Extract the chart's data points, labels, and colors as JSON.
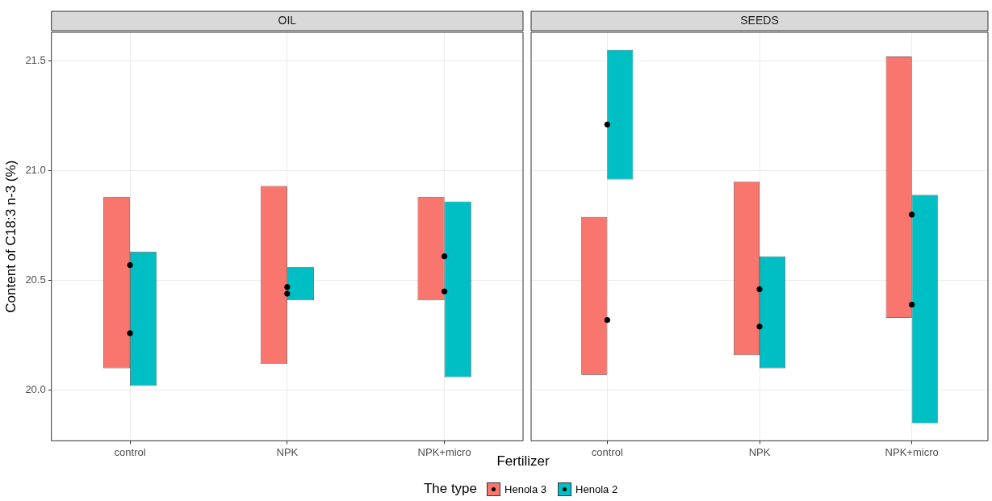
{
  "chart_data": [
    {
      "type": "bar",
      "title": "OIL",
      "xlabel": "Fertilizer",
      "ylabel": "Content of C18:3 n-3 (%)",
      "legend_title": "The type",
      "legend": "bottom",
      "grid": true,
      "marker": "circle",
      "categories": [
        "control",
        "NPK",
        "NPK+micro"
      ],
      "ylim": [
        19.77,
        21.63
      ],
      "yticks": [
        {
          "value": 20,
          "label": "20.0"
        },
        {
          "value": 20.5,
          "label": "20.5"
        },
        {
          "value": 21,
          "label": "21.0"
        },
        {
          "value": 21.5,
          "label": "21.5"
        }
      ],
      "series": [
        {
          "name": "Henola 3",
          "color": "#f8766d",
          "base": [
            20.1,
            20.12,
            20.41
          ],
          "values": [
            0.78,
            0.81,
            0.47
          ]
        },
        {
          "name": "Henola 2",
          "color": "#00bfc4",
          "base": [
            20.02,
            20.41,
            20.06
          ],
          "values": [
            0.61,
            0.15,
            0.8
          ]
        },
        {
          "type": "scatter",
          "color": "#000000",
          "x": [
            "control",
            "NPK",
            "NPK+micro"
          ],
          "values": [
            20.57,
            20.44,
            20.61
          ]
        },
        {
          "type": "scatter",
          "color": "#000000",
          "x": [
            "control",
            "NPK",
            "NPK+micro"
          ],
          "values": [
            20.26,
            20.47,
            20.45
          ]
        }
      ]
    },
    {
      "type": "bar",
      "title": "SEEDS",
      "tick_labels": "x",
      "grid": true,
      "marker": "circle",
      "categories": [
        "control",
        "NPK",
        "NPK+micro"
      ],
      "ylim": [
        19.77,
        21.63
      ],
      "yticks": [
        20,
        20.5,
        21,
        21.5
      ],
      "series": [
        {
          "color": "#f8766d",
          "base": [
            20.07,
            20.16,
            20.33
          ],
          "values": [
            0.72,
            0.79,
            1.19
          ]
        },
        {
          "color": "#00bfc4",
          "base": [
            20.96,
            20.1,
            19.85
          ],
          "values": [
            0.59,
            0.51,
            1.04
          ]
        },
        {
          "type": "scatter",
          "color": "#000000",
          "x": [
            "control",
            "NPK",
            "NPK+micro"
          ],
          "values": [
            20.32,
            20.46,
            20.8
          ]
        },
        {
          "type": "scatter",
          "color": "#000000",
          "x": [
            "control",
            "NPK",
            "NPK+micro"
          ],
          "values": [
            21.21,
            20.29,
            20.39
          ]
        }
      ]
    }
  ]
}
